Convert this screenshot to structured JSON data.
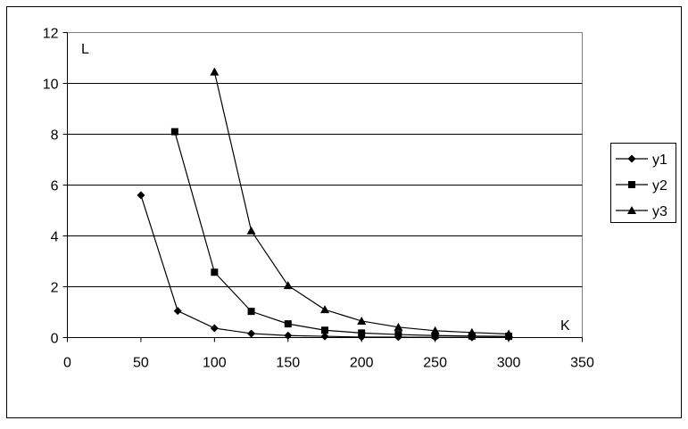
{
  "chart_data": {
    "type": "scatter",
    "xlabel": "K",
    "ylabel": "L",
    "xlim": [
      0,
      350
    ],
    "ylim": [
      0,
      12
    ],
    "x_ticks": [
      "0",
      "50",
      "100",
      "150",
      "200",
      "250",
      "300",
      "350"
    ],
    "y_ticks": [
      "0",
      "2",
      "4",
      "6",
      "8",
      "10",
      "12"
    ],
    "grid": "horizontal",
    "legend_position": "right",
    "series": [
      {
        "name": "y1",
        "marker": "diamond",
        "color": "#000000",
        "points": [
          {
            "x": 50,
            "y": 5.6
          },
          {
            "x": 75,
            "y": 1.05
          },
          {
            "x": 100,
            "y": 0.37
          },
          {
            "x": 125,
            "y": 0.16
          },
          {
            "x": 150,
            "y": 0.08
          },
          {
            "x": 175,
            "y": 0.05
          },
          {
            "x": 200,
            "y": 0.02
          },
          {
            "x": 225,
            "y": 0.02
          },
          {
            "x": 250,
            "y": 0.01
          },
          {
            "x": 275,
            "y": 0.01
          },
          {
            "x": 300,
            "y": 0.01
          }
        ]
      },
      {
        "name": "y2",
        "marker": "square",
        "color": "#000000",
        "points": [
          {
            "x": 73,
            "y": 8.1
          },
          {
            "x": 100,
            "y": 2.57
          },
          {
            "x": 125,
            "y": 1.03
          },
          {
            "x": 150,
            "y": 0.54
          },
          {
            "x": 175,
            "y": 0.29
          },
          {
            "x": 200,
            "y": 0.18
          },
          {
            "x": 225,
            "y": 0.12
          },
          {
            "x": 250,
            "y": 0.08
          },
          {
            "x": 275,
            "y": 0.06
          },
          {
            "x": 300,
            "y": 0.05
          }
        ]
      },
      {
        "name": "y3",
        "marker": "triangle",
        "color": "#000000",
        "points": [
          {
            "x": 100,
            "y": 10.45
          },
          {
            "x": 125,
            "y": 4.2
          },
          {
            "x": 150,
            "y": 2.05
          },
          {
            "x": 175,
            "y": 1.1
          },
          {
            "x": 200,
            "y": 0.65
          },
          {
            "x": 225,
            "y": 0.41
          },
          {
            "x": 250,
            "y": 0.27
          },
          {
            "x": 275,
            "y": 0.2
          },
          {
            "x": 300,
            "y": 0.14
          }
        ]
      }
    ]
  }
}
